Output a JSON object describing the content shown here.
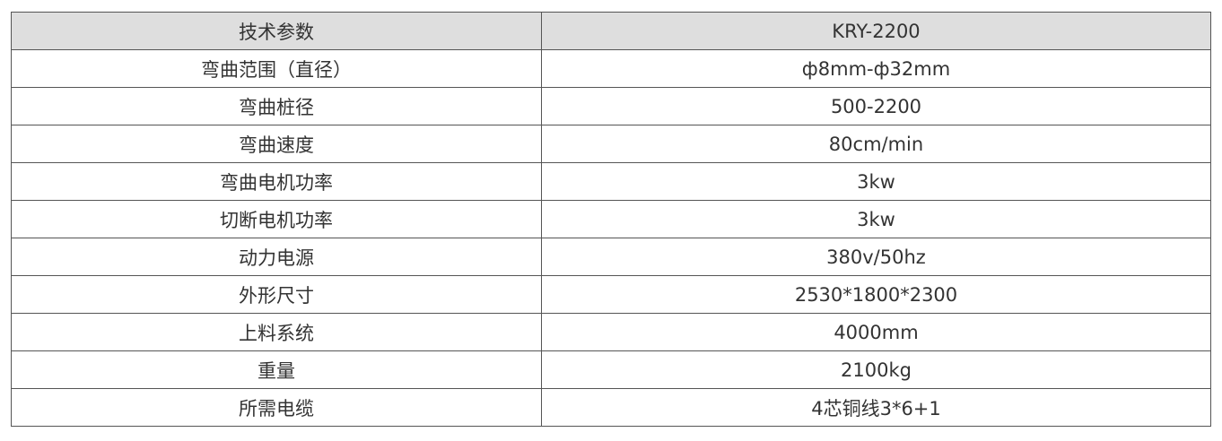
{
  "table": {
    "header": [
      "技术参数",
      "KRY-2200"
    ],
    "rows": [
      [
        "弯曲范围（直径）",
        "ф8mm-ф32mm"
      ],
      [
        "弯曲桩径",
        "500-2200"
      ],
      [
        "弯曲速度",
        "80cm/min"
      ],
      [
        "弯曲电机功率",
        "3kw"
      ],
      [
        "切断电机功率",
        "3kw"
      ],
      [
        "动力电源",
        "380v/50hz"
      ],
      [
        "外形尺寸",
        "2530*1800*2300"
      ],
      [
        "上料系统",
        "4000mm"
      ],
      [
        "重量",
        "2100kg"
      ],
      [
        "所需电缆",
        "4芯铜线3*6+1"
      ]
    ]
  },
  "colors": {
    "header_bg": "#dedede",
    "border": "#555555",
    "text": "#333333"
  }
}
